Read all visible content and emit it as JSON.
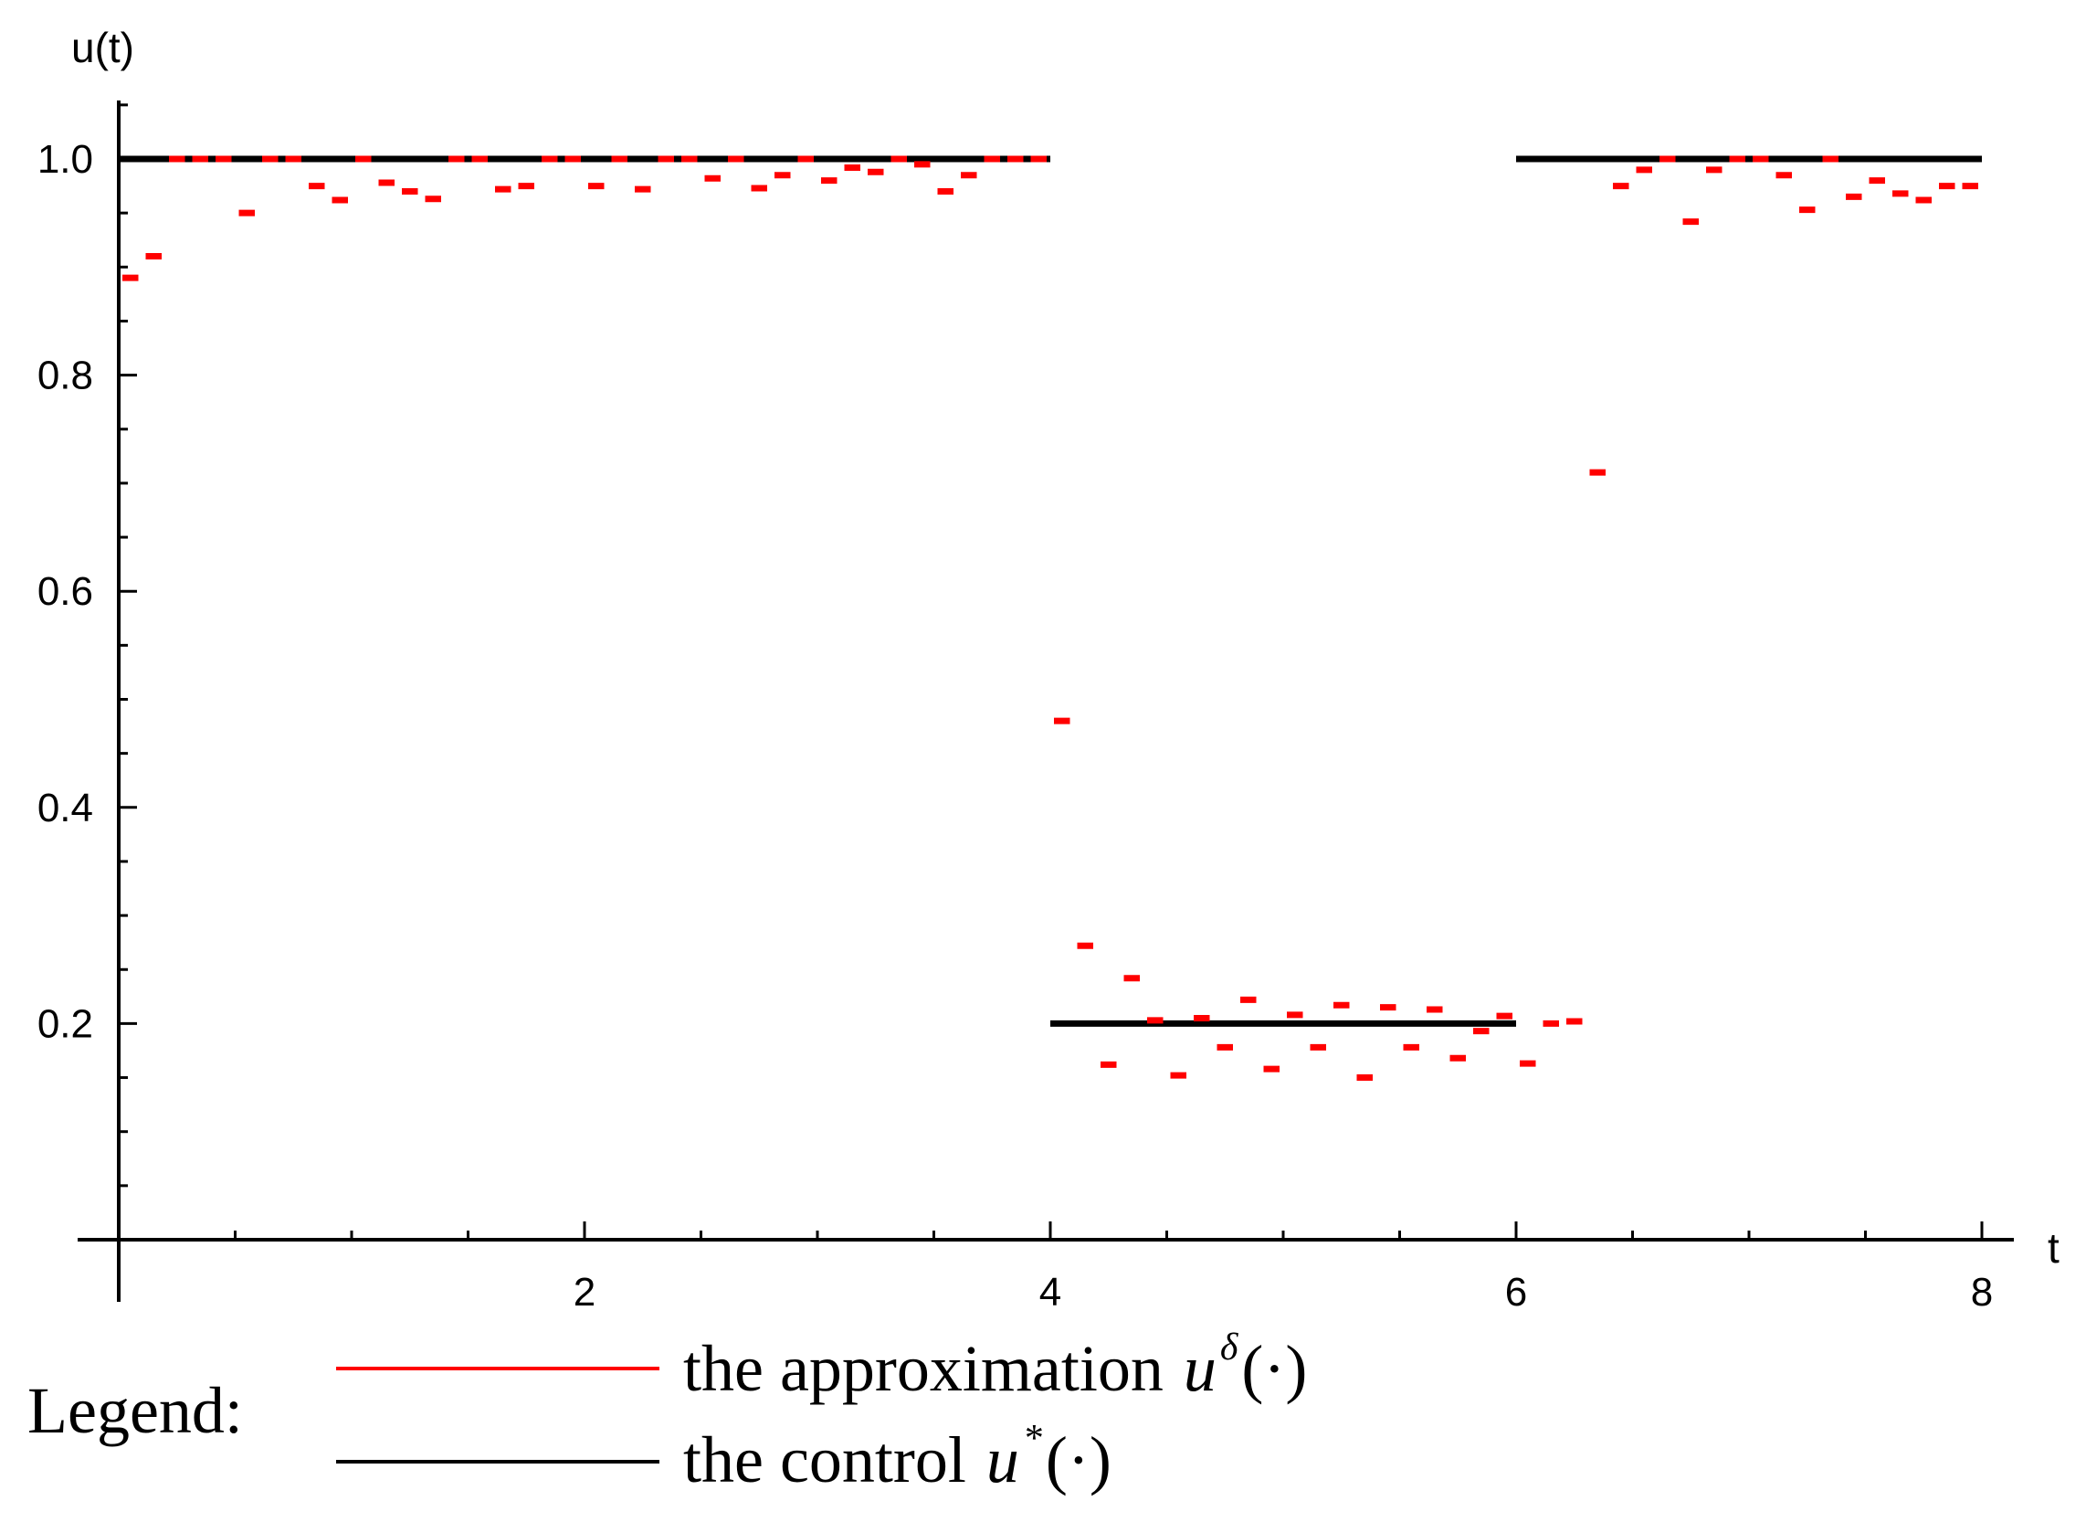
{
  "chart_data": {
    "type": "line",
    "xlabel": "t",
    "ylabel": "u(t)",
    "xlim": [
      0,
      8.1
    ],
    "ylim": [
      0,
      1.05
    ],
    "x_ticks": [
      2,
      4,
      6,
      8
    ],
    "y_ticks": [
      0.2,
      0.4,
      0.6,
      0.8,
      1.0
    ],
    "x_tick_labels": [
      "2",
      "4",
      "6",
      "8"
    ],
    "y_tick_labels": [
      "0.2",
      "0.4",
      "0.6",
      "0.8",
      "1.0"
    ],
    "x_minor_step": 0.5,
    "y_minor_step": 0.05,
    "series": [
      {
        "key": "control",
        "color": "#000000",
        "style": "solid",
        "segments": [
          {
            "x0": 0,
            "x1": 4,
            "y": 1.0
          },
          {
            "x0": 4,
            "x1": 6,
            "y": 0.2
          },
          {
            "x0": 6,
            "x1": 8,
            "y": 1.0
          }
        ]
      },
      {
        "key": "approximation",
        "color": "#ff0000",
        "style": "piecewise-constant",
        "dx": 0.1,
        "x": [
          0.0,
          0.1,
          0.2,
          0.3,
          0.4,
          0.5,
          0.6,
          0.7,
          0.8,
          0.9,
          1.0,
          1.1,
          1.2,
          1.3,
          1.4,
          1.5,
          1.6,
          1.7,
          1.8,
          1.9,
          2.0,
          2.1,
          2.2,
          2.3,
          2.4,
          2.5,
          2.6,
          2.7,
          2.8,
          2.9,
          3.0,
          3.1,
          3.2,
          3.3,
          3.4,
          3.5,
          3.6,
          3.7,
          3.8,
          3.9,
          4.0,
          4.1,
          4.2,
          4.3,
          4.4,
          4.5,
          4.6,
          4.7,
          4.8,
          4.9,
          5.0,
          5.1,
          5.2,
          5.3,
          5.4,
          5.5,
          5.6,
          5.7,
          5.8,
          5.9,
          6.0,
          6.1,
          6.2,
          6.3,
          6.4,
          6.5,
          6.6,
          6.7,
          6.8,
          6.9,
          7.0,
          7.1,
          7.2,
          7.3,
          7.4,
          7.5,
          7.6,
          7.7,
          7.8,
          7.9
        ],
        "y": [
          0.89,
          0.91,
          1.0,
          1.0,
          1.0,
          0.95,
          1.0,
          1.0,
          0.975,
          0.962,
          1.0,
          0.978,
          0.97,
          0.963,
          1.0,
          1.0,
          0.972,
          0.975,
          1.0,
          1.0,
          0.975,
          1.0,
          0.972,
          1.0,
          1.0,
          0.982,
          1.0,
          0.973,
          0.985,
          1.0,
          0.98,
          0.992,
          0.988,
          1.0,
          0.995,
          0.97,
          0.985,
          1.0,
          1.0,
          1.0,
          0.48,
          0.272,
          0.162,
          0.242,
          0.203,
          0.152,
          0.205,
          0.178,
          0.222,
          0.158,
          0.208,
          0.178,
          0.217,
          0.15,
          0.215,
          0.178,
          0.213,
          0.168,
          0.193,
          0.207,
          0.163,
          0.2,
          0.202,
          0.71,
          0.975,
          0.99,
          1.0,
          0.942,
          0.99,
          1.0,
          1.0,
          0.985,
          0.953,
          1.0,
          0.965,
          0.98,
          0.968,
          0.962,
          0.975,
          0.975
        ]
      }
    ],
    "legend": {
      "heading": "Legend:",
      "placement": "bottom",
      "entries": [
        {
          "key": "approximation",
          "text": "the approximation",
          "symbol": "u",
          "superscript": "δ",
          "args": "(·)",
          "color": "#ff0000"
        },
        {
          "key": "control",
          "text": "the control",
          "symbol": "u",
          "superscript": "*",
          "args": "(·)",
          "color": "#000000"
        }
      ]
    }
  }
}
